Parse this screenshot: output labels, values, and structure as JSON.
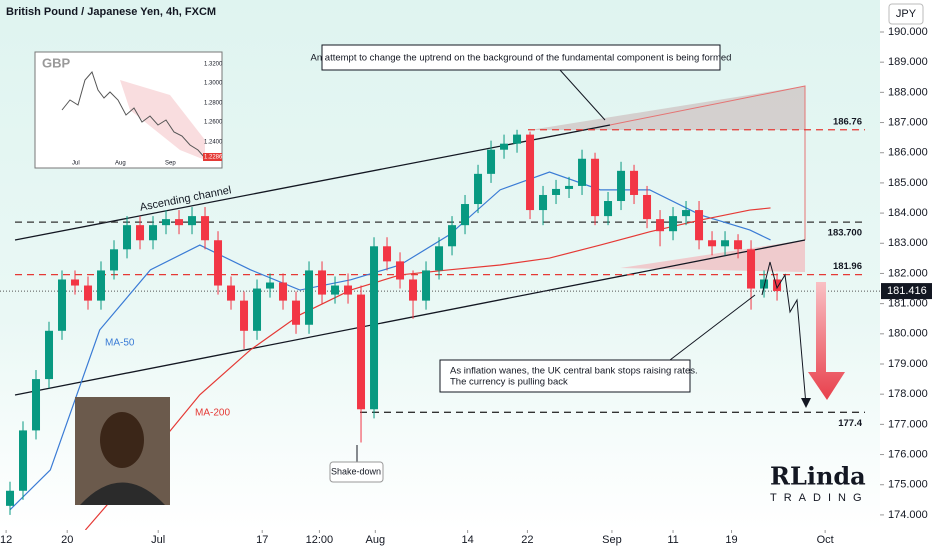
{
  "chart_data": {
    "type": "candlestick",
    "title": "British Pound / Japanese Yen, 4h, FXCM",
    "currency": "JPY",
    "open": [
      174.3,
      174.8,
      176.8,
      178.5,
      180.1,
      181.8,
      181.6,
      181.1,
      182.1,
      182.8,
      183.6,
      183.1,
      183.6,
      183.8,
      183.6,
      183.9,
      183.1,
      181.6,
      181.1,
      180.1,
      181.5,
      181.7,
      181.1,
      180.3,
      182.1,
      181.3,
      181.6,
      181.3,
      177.5,
      182.9,
      182.4,
      181.8,
      181.1,
      182.1,
      182.9,
      183.6,
      184.3,
      185.3,
      186.1,
      186.3,
      186.6,
      184.1,
      184.6,
      184.8,
      184.9,
      185.8,
      183.9,
      184.4,
      185.4,
      184.6,
      183.8,
      183.4,
      183.9,
      184.1,
      183.1,
      182.9,
      183.1,
      182.8,
      181.5,
      181.8
    ],
    "high": [
      175.1,
      177.1,
      178.8,
      180.4,
      182.1,
      182.1,
      181.9,
      182.4,
      183.1,
      183.9,
      183.9,
      183.9,
      184.1,
      184.1,
      184.2,
      184.2,
      183.4,
      181.9,
      181.4,
      181.8,
      182.0,
      182.0,
      181.4,
      182.4,
      182.4,
      181.9,
      182.0,
      181.6,
      183.2,
      183.2,
      182.7,
      182.1,
      182.4,
      183.2,
      183.9,
      184.6,
      185.6,
      186.4,
      186.6,
      186.76,
      186.7,
      184.9,
      185.1,
      185.2,
      186.1,
      186.0,
      184.7,
      185.7,
      185.6,
      184.9,
      184.1,
      184.2,
      184.4,
      184.4,
      183.4,
      183.4,
      183.3,
      183.1,
      182.1,
      182.0
    ],
    "low": [
      174.0,
      174.5,
      176.5,
      178.2,
      179.8,
      181.3,
      180.8,
      180.8,
      181.8,
      182.5,
      182.8,
      182.8,
      183.3,
      183.3,
      183.3,
      182.8,
      181.3,
      180.8,
      179.5,
      179.8,
      181.2,
      180.8,
      180.0,
      180.0,
      181.0,
      181.0,
      181.0,
      176.4,
      177.2,
      182.1,
      181.5,
      180.5,
      180.8,
      181.8,
      182.6,
      183.3,
      184.0,
      185.0,
      185.8,
      186.0,
      183.8,
      183.6,
      184.3,
      184.5,
      184.6,
      183.6,
      183.6,
      184.1,
      184.3,
      183.5,
      182.9,
      183.1,
      183.6,
      182.8,
      182.6,
      182.6,
      182.5,
      180.8,
      181.2,
      181.1
    ],
    "close": [
      174.8,
      176.8,
      178.5,
      180.1,
      181.8,
      181.6,
      181.1,
      182.1,
      182.8,
      183.6,
      183.1,
      183.6,
      183.8,
      183.6,
      183.9,
      183.1,
      181.6,
      181.1,
      180.1,
      181.5,
      181.7,
      181.1,
      180.3,
      182.1,
      181.3,
      181.6,
      181.3,
      177.5,
      182.9,
      182.4,
      181.8,
      181.1,
      182.1,
      182.9,
      183.6,
      184.3,
      185.3,
      186.1,
      186.3,
      186.6,
      184.1,
      184.6,
      184.8,
      184.9,
      185.8,
      183.9,
      184.4,
      185.4,
      184.6,
      183.8,
      183.4,
      183.9,
      184.1,
      183.1,
      182.9,
      183.1,
      182.8,
      181.5,
      181.8,
      181.416
    ],
    "up_color": "#089981",
    "down_color": "#f23645",
    "series": [
      {
        "name": "MA-50",
        "color": "#3a7bd5",
        "x": [
          0,
          3.1,
          6.9,
          10.8,
          14.6,
          18.5,
          22.3,
          26.2,
          30,
          33.8,
          37.7,
          41.5,
          45.4,
          49.2,
          53.1,
          56.9,
          58.5
        ],
        "values": [
          174.17,
          175.49,
          180.13,
          182.12,
          182.94,
          182.12,
          181.45,
          181.79,
          182.28,
          183.28,
          184.77,
          185.36,
          184.77,
          184.77,
          183.94,
          183.44,
          183.11
        ]
      },
      {
        "name": "MA-200",
        "color": "#e53935",
        "x": [
          5.8,
          10.8,
          14.6,
          18.5,
          22.3,
          26.2,
          30,
          33.8,
          37.7,
          41.5,
          45.4,
          49.2,
          53.1,
          56.9,
          58.5
        ],
        "values": [
          173.5,
          175.99,
          177.98,
          179.47,
          180.63,
          181.45,
          181.95,
          182.12,
          182.28,
          182.51,
          182.94,
          183.38,
          183.77,
          184.1,
          184.17
        ]
      }
    ],
    "levels": [
      {
        "value": 186.76,
        "color": "#e53935"
      },
      {
        "value": 183.7,
        "label": "183.700",
        "color": "#333333"
      },
      {
        "value": 181.96,
        "color": "#e53935"
      },
      {
        "value": 177.4,
        "color": "#333333"
      }
    ],
    "last_price": 181.416,
    "xlim": [
      -0.77,
      66.92
    ],
    "xticks": [
      {
        "value": -0.3,
        "label": "12"
      },
      {
        "value": 4.4,
        "label": "20"
      },
      {
        "value": 11.4,
        "label": "Jul"
      },
      {
        "value": 19.4,
        "label": "17"
      },
      {
        "value": 23.8,
        "label": "12:00"
      },
      {
        "value": 28.1,
        "label": "Aug"
      },
      {
        "value": 35.2,
        "label": "14"
      },
      {
        "value": 39.8,
        "label": "22"
      },
      {
        "value": 46.3,
        "label": "Sep"
      },
      {
        "value": 51,
        "label": "11"
      },
      {
        "value": 55.5,
        "label": "19"
      },
      {
        "value": 62.7,
        "label": "Oct"
      }
    ],
    "ylim": [
      173.5,
      191.06
    ],
    "yticks": [
      {
        "value": 174,
        "label": "174.000"
      },
      {
        "value": 175,
        "label": "175.000"
      },
      {
        "value": 176,
        "label": "176.000"
      },
      {
        "value": 177,
        "label": "177.000"
      },
      {
        "value": 178,
        "label": "178.000"
      },
      {
        "value": 179,
        "label": "179.000"
      },
      {
        "value": 180,
        "label": "180.000"
      },
      {
        "value": 181,
        "label": "181.000"
      },
      {
        "value": 182,
        "label": "182.000"
      },
      {
        "value": 183,
        "label": "183.000"
      },
      {
        "value": 184,
        "label": "184.000"
      },
      {
        "value": 185,
        "label": "185.000"
      },
      {
        "value": 186,
        "label": "186.000"
      },
      {
        "value": 187,
        "label": "187.000"
      },
      {
        "value": 188,
        "label": "188.000"
      },
      {
        "value": 189,
        "label": "189.000"
      },
      {
        "value": 190,
        "label": "190.000"
      }
    ],
    "annotations": {
      "top": "An attempt to change the uptrend on the background of the fundamental component is being formed",
      "bottom": [
        "As inflation wanes, the UK central bank stops raising rates.",
        "The currency is pulling back"
      ],
      "channel": "Ascending channel",
      "shake": "Shake-down"
    },
    "inset": {
      "title": "GBP",
      "yticks": [
        "1.3200",
        "1.3000",
        "1.2800",
        "1.2600",
        "1.2400"
      ],
      "xticks": [
        "Jul",
        "Aug",
        "Sep"
      ],
      "last": "1.2286"
    },
    "logo": {
      "name": "RLinda",
      "sub": "TRADING"
    }
  }
}
